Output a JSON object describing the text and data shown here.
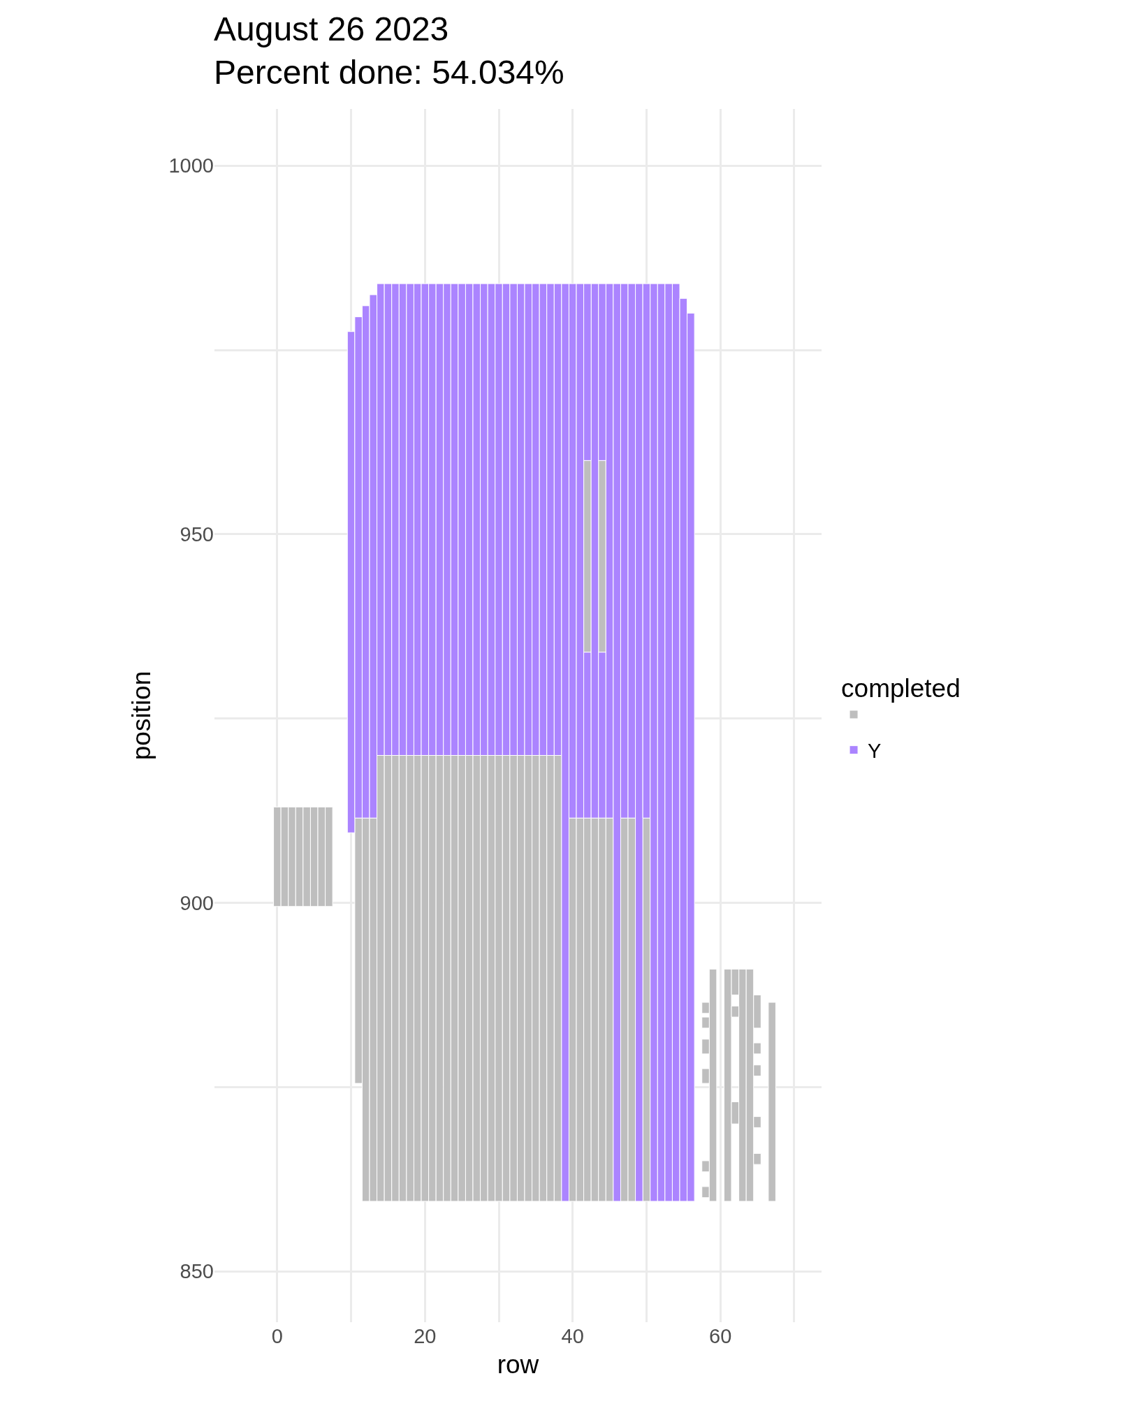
{
  "chart_data": {
    "type": "bar",
    "title": "August 26 2023",
    "subtitle": "Percent done: 54.034%",
    "xlabel": "row",
    "ylabel": "position",
    "legend_title": "completed",
    "legend": "right",
    "grid": true,
    "xlim": [
      -8.5,
      73.7
    ],
    "xticks": [
      0,
      {
        "value": 10,
        "label": null
      },
      20,
      {
        "value": 30,
        "label": null
      },
      40,
      {
        "value": 50,
        "label": null
      },
      60,
      {
        "value": 70,
        "label": null
      }
    ],
    "ylim": [
      843.1,
      1007.7
    ],
    "yticks": [
      850,
      {
        "value": 875,
        "label": null
      },
      900,
      {
        "value": 925,
        "label": null
      },
      950,
      {
        "value": 975,
        "label": null
      },
      1000
    ],
    "series": [
      {
        "color": "#bebebe",
        "x": [
          0,
          1,
          2,
          3,
          4,
          5,
          6,
          7,
          11,
          12,
          13,
          14,
          15,
          16,
          17,
          18,
          19,
          20,
          21,
          22,
          23,
          24,
          25,
          26,
          27,
          28,
          29,
          30,
          31,
          32,
          33,
          34,
          35,
          36,
          37,
          38,
          40,
          41,
          42,
          43,
          44,
          45,
          47,
          48,
          50,
          58,
          59,
          61,
          62,
          63,
          64,
          65,
          67
        ],
        "base": [
          899.5,
          899.5,
          899.5,
          899.5,
          899.5,
          899.5,
          899.5,
          899.5,
          875.5,
          859.5,
          859.5,
          859.5,
          859.5,
          859.5,
          859.5,
          859.5,
          859.5,
          859.5,
          859.5,
          859.5,
          859.5,
          859.5,
          859.5,
          859.5,
          859.5,
          859.5,
          859.5,
          859.5,
          859.5,
          859.5,
          859.5,
          859.5,
          859.5,
          859.5,
          859.5,
          859.5,
          859.5,
          859.5,
          859.5,
          859.5,
          859.5,
          859.5,
          859.5,
          859.5,
          859.5,
          860,
          859.5,
          859.5,
          870,
          859.5,
          859.5,
          864.5,
          859.5
        ],
        "values": [
          13.5,
          13.5,
          13.5,
          13.5,
          13.5,
          13.5,
          13.5,
          13.5,
          36,
          52,
          52,
          60.5,
          60.5,
          60.5,
          60.5,
          60.5,
          60.5,
          60.5,
          60.5,
          60.5,
          60.5,
          60.5,
          60.5,
          60.5,
          60.5,
          60.5,
          60.5,
          60.5,
          60.5,
          60.5,
          60.5,
          60.5,
          60.5,
          60.5,
          60.5,
          60.5,
          52,
          52,
          52,
          52,
          52,
          52,
          52,
          52,
          52,
          1.5,
          31.5,
          31.5,
          3,
          31.5,
          31.5,
          1.5,
          27
        ]
      },
      {
        "color": "#bebebe",
        "x": [
          42,
          44,
          58,
          62,
          65
        ],
        "base": [
          934,
          934,
          863.5,
          884.5,
          869.5
        ],
        "values": [
          26,
          26,
          1.5,
          1.5,
          1.5
        ]
      },
      {
        "color": "#bebebe",
        "x": [
          58,
          62,
          65
        ],
        "base": [
          875.5,
          887.5,
          876.5
        ],
        "values": [
          2,
          3.5,
          1.5
        ]
      },
      {
        "color": "#bebebe",
        "x": [
          58,
          65
        ],
        "base": [
          879.5,
          879.5
        ],
        "values": [
          2,
          1.5
        ]
      },
      {
        "color": "#bebebe",
        "x": [
          58,
          65
        ],
        "base": [
          883,
          883
        ],
        "values": [
          1.5,
          4.5
        ]
      },
      {
        "color": "#bebebe",
        "x": [
          58
        ],
        "base": [
          885
        ],
        "values": [
          1.5
        ]
      },
      {
        "name": "Y",
        "color": "#ab84ff",
        "x": [
          10,
          11,
          12,
          13,
          14,
          15,
          16,
          17,
          18,
          19,
          20,
          21,
          22,
          23,
          24,
          25,
          26,
          27,
          28,
          29,
          30,
          31,
          32,
          33,
          34,
          35,
          36,
          37,
          38,
          39,
          40,
          41,
          42,
          43,
          44,
          45,
          46,
          47,
          48,
          49,
          50,
          51,
          52,
          53,
          54,
          55,
          56
        ],
        "base": [
          909.5,
          911.5,
          911.5,
          911.5,
          920,
          920,
          920,
          920,
          920,
          920,
          920,
          920,
          920,
          920,
          920,
          920,
          920,
          920,
          920,
          920,
          920,
          920,
          920,
          920,
          920,
          920,
          920,
          920,
          920,
          859.5,
          911.5,
          911.5,
          911.5,
          911.5,
          911.5,
          911.5,
          859.5,
          911.5,
          911.5,
          859.5,
          911.5,
          859.5,
          859.5,
          859.5,
          859.5,
          859.5,
          859.5
        ],
        "values": [
          68,
          68,
          69.5,
          71,
          64,
          64,
          64,
          64,
          64,
          64,
          64,
          64,
          64,
          64,
          64,
          64,
          64,
          64,
          64,
          64,
          64,
          64,
          64,
          64,
          64,
          64,
          64,
          64,
          64,
          124.5,
          72.5,
          72.5,
          22.5,
          72.5,
          22.5,
          72.5,
          124.5,
          72.5,
          72.5,
          124.5,
          72.5,
          124.5,
          124.5,
          124.5,
          124.5,
          122.5,
          120.5
        ]
      },
      {
        "color": "#ab84ff",
        "x": [
          42,
          44
        ],
        "base": [
          960,
          960
        ],
        "values": [
          24,
          24
        ]
      }
    ]
  }
}
